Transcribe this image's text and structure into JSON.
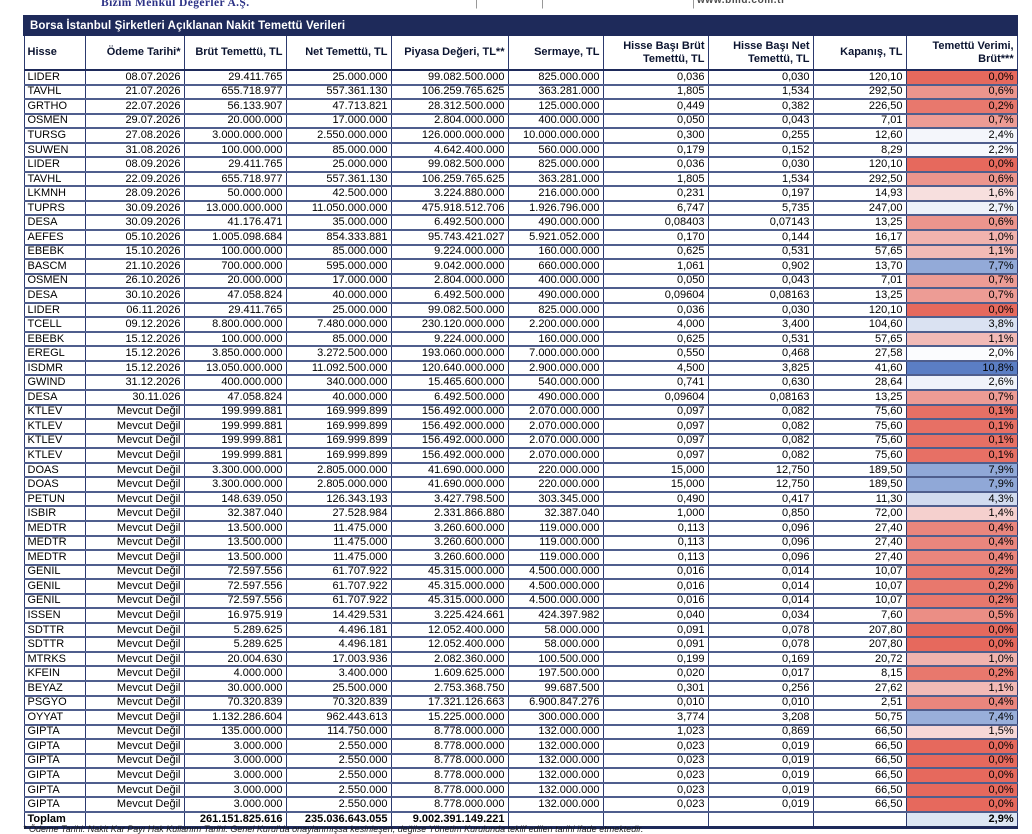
{
  "letterhead": {
    "logo_text": "Bizim Menkul Değerler A.Ş.",
    "divider": "|",
    "url_text": "www.bmd.com.tr"
  },
  "table": {
    "title": "Borsa İstanbul Şirketleri Açıklanan Nakit Temettü Verileri",
    "columns": [
      "Hisse",
      "Ödeme Tarihi*",
      "Brüt Temettü, TL",
      "Net Temettü, TL",
      "Piyasa Değeri, TL**",
      "Sermaye, TL",
      "Hisse Başı Brüt Temettü, TL",
      "Hisse Başı Net Temettü, TL",
      "Kapanış, TL",
      "Temettü Verimi, Brüt***"
    ],
    "rows": [
      [
        "LIDER",
        "08.07.2026",
        "29.411.765",
        "25.000.000",
        "99.082.500.000",
        "825.000.000",
        "0,036",
        "0,030",
        "120,10",
        "0,0%"
      ],
      [
        "TAVHL",
        "21.07.2026",
        "655.718.977",
        "557.361.130",
        "106.259.765.625",
        "363.281.000",
        "1,805",
        "1,534",
        "292,50",
        "0,6%"
      ],
      [
        "GRTHO",
        "22.07.2026",
        "56.133.907",
        "47.713.821",
        "28.312.500.000",
        "125.000.000",
        "0,449",
        "0,382",
        "226,50",
        "0,2%"
      ],
      [
        "OSMEN",
        "29.07.2026",
        "20.000.000",
        "17.000.000",
        "2.804.000.000",
        "400.000.000",
        "0,050",
        "0,043",
        "7,01",
        "0,7%"
      ],
      [
        "TURSG",
        "27.08.2026",
        "3.000.000.000",
        "2.550.000.000",
        "126.000.000.000",
        "10.000.000.000",
        "0,300",
        "0,255",
        "12,60",
        "2,4%"
      ],
      [
        "SUWEN",
        "31.08.2026",
        "100.000.000",
        "85.000.000",
        "4.642.400.000",
        "560.000.000",
        "0,179",
        "0,152",
        "8,29",
        "2,2%"
      ],
      [
        "LIDER",
        "08.09.2026",
        "29.411.765",
        "25.000.000",
        "99.082.500.000",
        "825.000.000",
        "0,036",
        "0,030",
        "120,10",
        "0,0%"
      ],
      [
        "TAVHL",
        "22.09.2026",
        "655.718.977",
        "557.361.130",
        "106.259.765.625",
        "363.281.000",
        "1,805",
        "1,534",
        "292,50",
        "0,6%"
      ],
      [
        "LKMNH",
        "28.09.2026",
        "50.000.000",
        "42.500.000",
        "3.224.880.000",
        "216.000.000",
        "0,231",
        "0,197",
        "14,93",
        "1,6%"
      ],
      [
        "TUPRS",
        "30.09.2026",
        "13.000.000.000",
        "11.050.000.000",
        "475.918.512.706",
        "1.926.796.000",
        "6,747",
        "5,735",
        "247,00",
        "2,7%"
      ],
      [
        "DESA",
        "30.09.2026",
        "41.176.471",
        "35.000.000",
        "6.492.500.000",
        "490.000.000",
        "0,08403",
        "0,07143",
        "13,25",
        "0,6%"
      ],
      [
        "AEFES",
        "05.10.2026",
        "1.005.098.684",
        "854.333.881",
        "95.743.421.027",
        "5.921.052.000",
        "0,170",
        "0,144",
        "16,17",
        "1,0%"
      ],
      [
        "EBEBK",
        "15.10.2026",
        "100.000.000",
        "85.000.000",
        "9.224.000.000",
        "160.000.000",
        "0,625",
        "0,531",
        "57,65",
        "1,1%"
      ],
      [
        "BASCM",
        "21.10.2026",
        "700.000.000",
        "595.000.000",
        "9.042.000.000",
        "660.000.000",
        "1,061",
        "0,902",
        "13,70",
        "7,7%"
      ],
      [
        "OSMEN",
        "26.10.2026",
        "20.000.000",
        "17.000.000",
        "2.804.000.000",
        "400.000.000",
        "0,050",
        "0,043",
        "7,01",
        "0,7%"
      ],
      [
        "DESA",
        "30.10.2026",
        "47.058.824",
        "40.000.000",
        "6.492.500.000",
        "490.000.000",
        "0,09604",
        "0,08163",
        "13,25",
        "0,7%"
      ],
      [
        "LIDER",
        "06.11.2026",
        "29.411.765",
        "25.000.000",
        "99.082.500.000",
        "825.000.000",
        "0,036",
        "0,030",
        "120,10",
        "0,0%"
      ],
      [
        "TCELL",
        "09.12.2026",
        "8.800.000.000",
        "7.480.000.000",
        "230.120.000.000",
        "2.200.000.000",
        "4,000",
        "3,400",
        "104,60",
        "3,8%"
      ],
      [
        "EBEBK",
        "15.12.2026",
        "100.000.000",
        "85.000.000",
        "9.224.000.000",
        "160.000.000",
        "0,625",
        "0,531",
        "57,65",
        "1,1%"
      ],
      [
        "EREGL",
        "15.12.2026",
        "3.850.000.000",
        "3.272.500.000",
        "193.060.000.000",
        "7.000.000.000",
        "0,550",
        "0,468",
        "27,58",
        "2,0%"
      ],
      [
        "ISDMR",
        "15.12.2026",
        "13.050.000.000",
        "11.092.500.000",
        "120.640.000.000",
        "2.900.000.000",
        "4,500",
        "3,825",
        "41,60",
        "10,8%"
      ],
      [
        "GWIND",
        "31.12.2026",
        "400.000.000",
        "340.000.000",
        "15.465.600.000",
        "540.000.000",
        "0,741",
        "0,630",
        "28,64",
        "2,6%"
      ],
      [
        "DESA",
        "30.11.026",
        "47.058.824",
        "40.000.000",
        "6.492.500.000",
        "490.000.000",
        "0,09604",
        "0,08163",
        "13,25",
        "0,7%"
      ],
      [
        "KTLEV",
        "Mevcut Değil",
        "199.999.881",
        "169.999.899",
        "156.492.000.000",
        "2.070.000.000",
        "0,097",
        "0,082",
        "75,60",
        "0,1%"
      ],
      [
        "KTLEV",
        "Mevcut Değil",
        "199.999.881",
        "169.999.899",
        "156.492.000.000",
        "2.070.000.000",
        "0,097",
        "0,082",
        "75,60",
        "0,1%"
      ],
      [
        "KTLEV",
        "Mevcut Değil",
        "199.999.881",
        "169.999.899",
        "156.492.000.000",
        "2.070.000.000",
        "0,097",
        "0,082",
        "75,60",
        "0,1%"
      ],
      [
        "KTLEV",
        "Mevcut Değil",
        "199.999.881",
        "169.999.899",
        "156.492.000.000",
        "2.070.000.000",
        "0,097",
        "0,082",
        "75,60",
        "0,1%"
      ],
      [
        "DOAS",
        "Mevcut Değil",
        "3.300.000.000",
        "2.805.000.000",
        "41.690.000.000",
        "220.000.000",
        "15,000",
        "12,750",
        "189,50",
        "7,9%"
      ],
      [
        "DOAS",
        "Mevcut Değil",
        "3.300.000.000",
        "2.805.000.000",
        "41.690.000.000",
        "220.000.000",
        "15,000",
        "12,750",
        "189,50",
        "7,9%"
      ],
      [
        "PETUN",
        "Mevcut Değil",
        "148.639.050",
        "126.343.193",
        "3.427.798.500",
        "303.345.000",
        "0,490",
        "0,417",
        "11,30",
        "4,3%"
      ],
      [
        "ISBIR",
        "Mevcut Değil",
        "32.387.040",
        "27.528.984",
        "2.331.866.880",
        "32.387.040",
        "1,000",
        "0,850",
        "72,00",
        "1,4%"
      ],
      [
        "MEDTR",
        "Mevcut Değil",
        "13.500.000",
        "11.475.000",
        "3.260.600.000",
        "119.000.000",
        "0,113",
        "0,096",
        "27,40",
        "0,4%"
      ],
      [
        "MEDTR",
        "Mevcut Değil",
        "13.500.000",
        "11.475.000",
        "3.260.600.000",
        "119.000.000",
        "0,113",
        "0,096",
        "27,40",
        "0,4%"
      ],
      [
        "MEDTR",
        "Mevcut Değil",
        "13.500.000",
        "11.475.000",
        "3.260.600.000",
        "119.000.000",
        "0,113",
        "0,096",
        "27,40",
        "0,4%"
      ],
      [
        "GENIL",
        "Mevcut Değil",
        "72.597.556",
        "61.707.922",
        "45.315.000.000",
        "4.500.000.000",
        "0,016",
        "0,014",
        "10,07",
        "0,2%"
      ],
      [
        "GENIL",
        "Mevcut Değil",
        "72.597.556",
        "61.707.922",
        "45.315.000.000",
        "4.500.000.000",
        "0,016",
        "0,014",
        "10,07",
        "0,2%"
      ],
      [
        "GENIL",
        "Mevcut Değil",
        "72.597.556",
        "61.707.922",
        "45.315.000.000",
        "4.500.000.000",
        "0,016",
        "0,014",
        "10,07",
        "0,2%"
      ],
      [
        "ISSEN",
        "Mevcut Değil",
        "16.975.919",
        "14.429.531",
        "3.225.424.661",
        "424.397.982",
        "0,040",
        "0,034",
        "7,60",
        "0,5%"
      ],
      [
        "SDTTR",
        "Mevcut Değil",
        "5.289.625",
        "4.496.181",
        "12.052.400.000",
        "58.000.000",
        "0,091",
        "0,078",
        "207,80",
        "0,0%"
      ],
      [
        "SDTTR",
        "Mevcut Değil",
        "5.289.625",
        "4.496.181",
        "12.052.400.000",
        "58.000.000",
        "0,091",
        "0,078",
        "207,80",
        "0,0%"
      ],
      [
        "MTRKS",
        "Mevcut Değil",
        "20.004.630",
        "17.003.936",
        "2.082.360.000",
        "100.500.000",
        "0,199",
        "0,169",
        "20,72",
        "1,0%"
      ],
      [
        "KFEIN",
        "Mevcut Değil",
        "4.000.000",
        "3.400.000",
        "1.609.625.000",
        "197.500.000",
        "0,020",
        "0,017",
        "8,15",
        "0,2%"
      ],
      [
        "BEYAZ",
        "Mevcut Değil",
        "30.000.000",
        "25.500.000",
        "2.753.368.750",
        "99.687.500",
        "0,301",
        "0,256",
        "27,62",
        "1,1%"
      ],
      [
        "PSGYO",
        "Mevcut Değil",
        "70.320.839",
        "70.320.839",
        "17.321.126.663",
        "6.900.847.276",
        "0,010",
        "0,010",
        "2,51",
        "0,4%"
      ],
      [
        "OYYAT",
        "Mevcut Değil",
        "1.132.286.604",
        "962.443.613",
        "15.225.000.000",
        "300.000.000",
        "3,774",
        "3,208",
        "50,75",
        "7,4%"
      ],
      [
        "GIPTA",
        "Mevcut Değil",
        "135.000.000",
        "114.750.000",
        "8.778.000.000",
        "132.000.000",
        "1,023",
        "0,869",
        "66,50",
        "1,5%"
      ],
      [
        "GIPTA",
        "Mevcut Değil",
        "3.000.000",
        "2.550.000",
        "8.778.000.000",
        "132.000.000",
        "0,023",
        "0,019",
        "66,50",
        "0,0%"
      ],
      [
        "GIPTA",
        "Mevcut Değil",
        "3.000.000",
        "2.550.000",
        "8.778.000.000",
        "132.000.000",
        "0,023",
        "0,019",
        "66,50",
        "0,0%"
      ],
      [
        "GIPTA",
        "Mevcut Değil",
        "3.000.000",
        "2.550.000",
        "8.778.000.000",
        "132.000.000",
        "0,023",
        "0,019",
        "66,50",
        "0,0%"
      ],
      [
        "GIPTA",
        "Mevcut Değil",
        "3.000.000",
        "2.550.000",
        "8.778.000.000",
        "132.000.000",
        "0,023",
        "0,019",
        "66,50",
        "0,0%"
      ],
      [
        "GIPTA",
        "Mevcut Değil",
        "3.000.000",
        "2.550.000",
        "8.778.000.000",
        "132.000.000",
        "0,023",
        "0,019",
        "66,50",
        "0,0%"
      ]
    ],
    "total": {
      "label": "Toplam",
      "brut": "261.151.825.616",
      "net": "235.036.643.055",
      "piyasa": "9.002.391.149.221",
      "verim": "2,9%"
    },
    "footnote": "* Ödeme Tarihi: Nakit Kar Payı Hak Kullanım Tarihi. Genel Kurul'da onaylanmışsa kesinleşen, değilse Yönetim Kurulunda teklif edilen tarihi ifade etmektedir.",
    "colors": {
      "title_bg": "#1e2a5a",
      "scale_min_red": "#E6695D",
      "scale_mid_white": "#FBFCFE",
      "scale_max_blue": "#5B7EC4",
      "scale_mid_value": 2.0,
      "scale_max_value": 10.8,
      "total_verim_bg": "#DCE6F3"
    }
  }
}
